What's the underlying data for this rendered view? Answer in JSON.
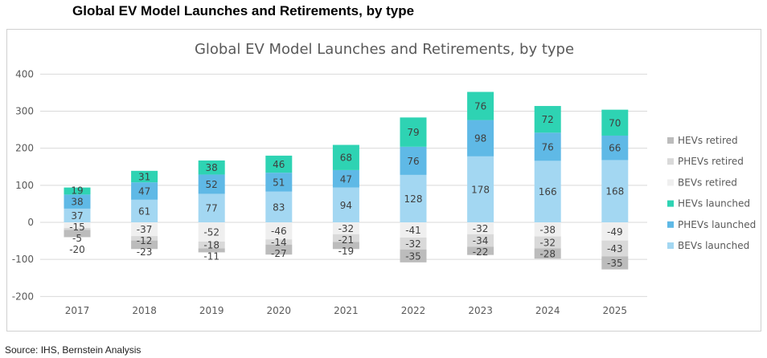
{
  "header": {
    "title": "Global EV Model Launches and Retirements, by type"
  },
  "footer": {
    "source": "Source: IHS, Bernstein Analysis"
  },
  "chart_data": {
    "type": "bar",
    "stacked": true,
    "title": "Global EV Model Launches and Retirements, by type",
    "xlabel": "",
    "ylabel": "",
    "ylim": [
      -200,
      400
    ],
    "yticks": [
      -200,
      -100,
      0,
      100,
      200,
      300,
      400
    ],
    "grid": true,
    "legend_position": "right",
    "categories": [
      "2017",
      "2018",
      "2019",
      "2020",
      "2021",
      "2022",
      "2023",
      "2024",
      "2025"
    ],
    "series": [
      {
        "name": "BEVs launched",
        "color": "#a3d7f2",
        "values": [
          37,
          61,
          77,
          83,
          94,
          128,
          178,
          166,
          168
        ]
      },
      {
        "name": "PHEVs launched",
        "color": "#5fb9e6",
        "values": [
          38,
          47,
          52,
          51,
          47,
          76,
          98,
          76,
          66
        ]
      },
      {
        "name": "HEVs launched",
        "color": "#2ed3b3",
        "values": [
          19,
          31,
          38,
          46,
          68,
          79,
          76,
          72,
          70
        ]
      },
      {
        "name": "BEVs retired",
        "color": "#efefef",
        "values": [
          -15,
          -37,
          -52,
          -46,
          -32,
          -41,
          -32,
          -38,
          -49
        ]
      },
      {
        "name": "PHEVs retired",
        "color": "#d9d9d9",
        "values": [
          -5,
          -12,
          -18,
          -14,
          -21,
          -32,
          -34,
          -32,
          -43
        ]
      },
      {
        "name": "HEVs retired",
        "color": "#bcbcbc",
        "values": [
          -20,
          -23,
          -11,
          -27,
          -19,
          -35,
          -22,
          -28,
          -35
        ]
      }
    ],
    "legend_order": [
      "HEVs retired",
      "PHEVs retired",
      "BEVs retired",
      "HEVs launched",
      "PHEVs launched",
      "BEVs launched"
    ]
  }
}
